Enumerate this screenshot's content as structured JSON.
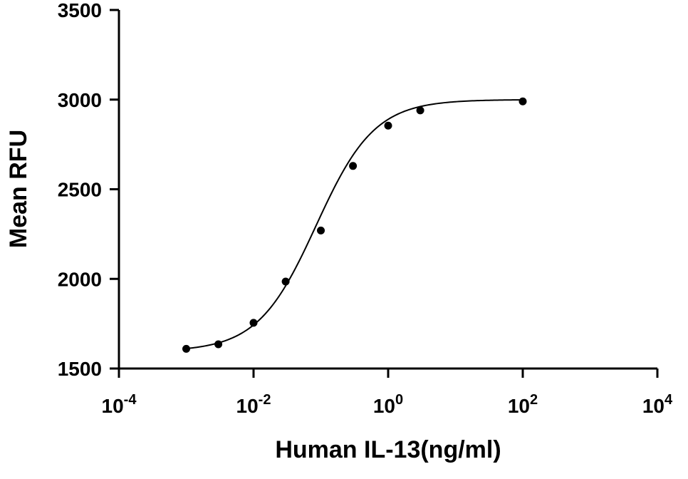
{
  "chart_data": {
    "type": "scatter",
    "title": "",
    "xlabel": "Human IL-13(ng/ml)",
    "ylabel": "Mean RFU",
    "x_scale": "log10",
    "xlim": [
      0.0001,
      10000
    ],
    "ylim": [
      1500,
      3500
    ],
    "x_ticks": [
      {
        "value": 0.0001,
        "base": "10",
        "exponent": "-4"
      },
      {
        "value": 0.01,
        "base": "10",
        "exponent": "-2"
      },
      {
        "value": 1,
        "base": "10",
        "exponent": "0"
      },
      {
        "value": 100,
        "base": "10",
        "exponent": "2"
      },
      {
        "value": 10000,
        "base": "10",
        "exponent": "4"
      }
    ],
    "y_ticks": [
      1500,
      2000,
      2500,
      3000,
      3500
    ],
    "grid": false,
    "legend": "none",
    "series": [
      {
        "points": [
          {
            "x": 0.001,
            "y": 1610
          },
          {
            "x": 0.003,
            "y": 1635
          },
          {
            "x": 0.01,
            "y": 1755
          },
          {
            "x": 0.03,
            "y": 1985
          },
          {
            "x": 0.1,
            "y": 2270
          },
          {
            "x": 0.3,
            "y": 2630
          },
          {
            "x": 1,
            "y": 2855
          },
          {
            "x": 3,
            "y": 2940
          },
          {
            "x": 100,
            "y": 2990
          }
        ],
        "fit": {
          "model": "four-parameter logistic",
          "bottom": 1595,
          "top": 3000,
          "ec50": 0.085,
          "hill_slope": 1.0
        },
        "color": "#000000"
      }
    ]
  }
}
